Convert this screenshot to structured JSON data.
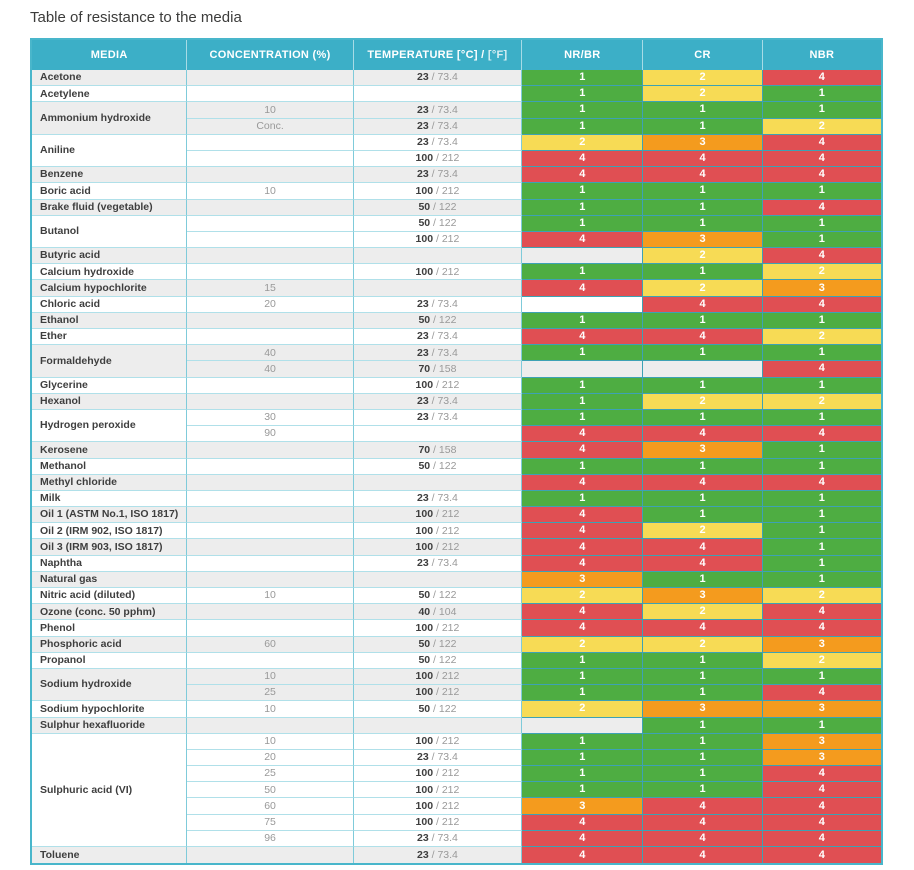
{
  "title": "Table of resistance to the media",
  "header": {
    "media": "MEDIA",
    "concentration": "CONCENTRATION (%)",
    "temperature_main": "TEMPERATURE [°C] /",
    "temperature_sub": "[°F]",
    "nr_br": "NR/BR",
    "cr": "CR",
    "nbr": "NBR"
  },
  "colors": {
    "header_bg": "#3cafc7",
    "outer_border": "#49b6cb",
    "grid_vertical": "#7fcbda",
    "grid_horizontal": "#b0e0e9",
    "grid_rating": "#3da2b4",
    "rating_1_green": "#4ead42",
    "rating_2_yellow": "#f7db55",
    "rating_3_orange": "#f49b1e",
    "rating_4_red": "#e04f53",
    "zebra_grey": "#ededed"
  },
  "chart_data": {
    "type": "table",
    "title": "Table of resistance to the media",
    "columns": [
      "MEDIA",
      "CONCENTRATION (%)",
      "TEMPERATURE [°C] / [°F]",
      "NR/BR",
      "CR",
      "NBR"
    ]
  },
  "groups": [
    {
      "media": "Acetone",
      "rows": [
        {
          "conc": "",
          "temp_c": "23",
          "temp_f": "73.4",
          "nr_br": "1",
          "cr": "2",
          "nbr": "4"
        }
      ]
    },
    {
      "media": "Acetylene",
      "rows": [
        {
          "conc": "",
          "temp_c": "",
          "temp_f": "",
          "nr_br": "1",
          "cr": "2",
          "nbr": "1"
        }
      ]
    },
    {
      "media": "Ammonium hydroxide",
      "rows": [
        {
          "conc": "10",
          "temp_c": "23",
          "temp_f": "73.4",
          "nr_br": "1",
          "cr": "1",
          "nbr": "1"
        },
        {
          "conc": "Conc.",
          "temp_c": "23",
          "temp_f": "73.4",
          "nr_br": "1",
          "cr": "1",
          "nbr": "2"
        }
      ]
    },
    {
      "media": "Aniline",
      "rows": [
        {
          "conc": "",
          "temp_c": "23",
          "temp_f": "73.4",
          "nr_br": "2",
          "cr": "3",
          "nbr": "4"
        },
        {
          "conc": "",
          "temp_c": "100",
          "temp_f": "212",
          "nr_br": "4",
          "cr": "4",
          "nbr": "4"
        }
      ]
    },
    {
      "media": "Benzene",
      "rows": [
        {
          "conc": "",
          "temp_c": "23",
          "temp_f": "73.4",
          "nr_br": "4",
          "cr": "4",
          "nbr": "4"
        }
      ]
    },
    {
      "media": "Boric acid",
      "rows": [
        {
          "conc": "10",
          "temp_c": "100",
          "temp_f": "212",
          "nr_br": "1",
          "cr": "1",
          "nbr": "1"
        }
      ]
    },
    {
      "media": "Brake fluid (vegetable)",
      "rows": [
        {
          "conc": "",
          "temp_c": "50",
          "temp_f": "122",
          "nr_br": "1",
          "cr": "1",
          "nbr": "4"
        }
      ]
    },
    {
      "media": "Butanol",
      "rows": [
        {
          "conc": "",
          "temp_c": "50",
          "temp_f": "122",
          "nr_br": "1",
          "cr": "1",
          "nbr": "1"
        },
        {
          "conc": "",
          "temp_c": "100",
          "temp_f": "212",
          "nr_br": "4",
          "cr": "3",
          "nbr": "1"
        }
      ]
    },
    {
      "media": "Butyric acid",
      "rows": [
        {
          "conc": "",
          "temp_c": "",
          "temp_f": "",
          "nr_br": "",
          "cr": "2",
          "nbr": "4"
        }
      ]
    },
    {
      "media": "Calcium hydroxide",
      "rows": [
        {
          "conc": "",
          "temp_c": "100",
          "temp_f": "212",
          "nr_br": "1",
          "cr": "1",
          "nbr": "2"
        }
      ]
    },
    {
      "media": "Calcium hypochlorite",
      "rows": [
        {
          "conc": "15",
          "temp_c": "",
          "temp_f": "",
          "nr_br": "4",
          "cr": "2",
          "nbr": "3"
        }
      ]
    },
    {
      "media": "Chloric acid",
      "rows": [
        {
          "conc": "20",
          "temp_c": "23",
          "temp_f": "73.4",
          "nr_br": "",
          "cr": "4",
          "nbr": "4"
        }
      ]
    },
    {
      "media": "Ethanol",
      "rows": [
        {
          "conc": "",
          "temp_c": "50",
          "temp_f": "122",
          "nr_br": "1",
          "cr": "1",
          "nbr": "1"
        }
      ]
    },
    {
      "media": "Ether",
      "rows": [
        {
          "conc": "",
          "temp_c": "23",
          "temp_f": "73.4",
          "nr_br": "4",
          "cr": "4",
          "nbr": "2"
        }
      ]
    },
    {
      "media": "Formaldehyde",
      "rows": [
        {
          "conc": "40",
          "temp_c": "23",
          "temp_f": "73.4",
          "nr_br": "1",
          "cr": "1",
          "nbr": "1"
        },
        {
          "conc": "40",
          "temp_c": "70",
          "temp_f": "158",
          "nr_br": "",
          "cr": "",
          "nbr": "4"
        }
      ]
    },
    {
      "media": "Glycerine",
      "rows": [
        {
          "conc": "",
          "temp_c": "100",
          "temp_f": "212",
          "nr_br": "1",
          "cr": "1",
          "nbr": "1"
        }
      ]
    },
    {
      "media": "Hexanol",
      "rows": [
        {
          "conc": "",
          "temp_c": "23",
          "temp_f": "73.4",
          "nr_br": "1",
          "cr": "2",
          "nbr": "2"
        }
      ]
    },
    {
      "media": "Hydrogen peroxide",
      "rows": [
        {
          "conc": "30",
          "temp_c": "23",
          "temp_f": "73.4",
          "nr_br": "1",
          "cr": "1",
          "nbr": "1"
        },
        {
          "conc": "90",
          "temp_c": "",
          "temp_f": "",
          "nr_br": "4",
          "cr": "4",
          "nbr": "4"
        }
      ]
    },
    {
      "media": "Kerosene",
      "rows": [
        {
          "conc": "",
          "temp_c": "70",
          "temp_f": "158",
          "nr_br": "4",
          "cr": "3",
          "nbr": "1"
        }
      ]
    },
    {
      "media": "Methanol",
      "rows": [
        {
          "conc": "",
          "temp_c": "50",
          "temp_f": "122",
          "nr_br": "1",
          "cr": "1",
          "nbr": "1"
        }
      ]
    },
    {
      "media": "Methyl chloride",
      "rows": [
        {
          "conc": "",
          "temp_c": "",
          "temp_f": "",
          "nr_br": "4",
          "cr": "4",
          "nbr": "4"
        }
      ]
    },
    {
      "media": "Milk",
      "rows": [
        {
          "conc": "",
          "temp_c": "23",
          "temp_f": "73.4",
          "nr_br": "1",
          "cr": "1",
          "nbr": "1"
        }
      ]
    },
    {
      "media": "Oil 1 (ASTM No.1, ISO 1817)",
      "rows": [
        {
          "conc": "",
          "temp_c": "100",
          "temp_f": "212",
          "nr_br": "4",
          "cr": "1",
          "nbr": "1"
        }
      ]
    },
    {
      "media": "Oil 2 (IRM 902, ISO 1817)",
      "rows": [
        {
          "conc": "",
          "temp_c": "100",
          "temp_f": "212",
          "nr_br": "4",
          "cr": "2",
          "nbr": "1"
        }
      ]
    },
    {
      "media": "Oil 3 (IRM 903, ISO 1817)",
      "rows": [
        {
          "conc": "",
          "temp_c": "100",
          "temp_f": "212",
          "nr_br": "4",
          "cr": "4",
          "nbr": "1"
        }
      ]
    },
    {
      "media": "Naphtha",
      "rows": [
        {
          "conc": "",
          "temp_c": "23",
          "temp_f": "73.4",
          "nr_br": "4",
          "cr": "4",
          "nbr": "1"
        }
      ]
    },
    {
      "media": "Natural gas",
      "rows": [
        {
          "conc": "",
          "temp_c": "",
          "temp_f": "",
          "nr_br": "3",
          "cr": "1",
          "nbr": "1"
        }
      ]
    },
    {
      "media": "Nitric acid (diluted)",
      "rows": [
        {
          "conc": "10",
          "temp_c": "50",
          "temp_f": "122",
          "nr_br": "2",
          "cr": "3",
          "nbr": "2"
        }
      ]
    },
    {
      "media": "Ozone (conc. 50 pphm)",
      "rows": [
        {
          "conc": "",
          "temp_c": "40",
          "temp_f": "104",
          "nr_br": "4",
          "cr": "2",
          "nbr": "4"
        }
      ]
    },
    {
      "media": "Phenol",
      "rows": [
        {
          "conc": "",
          "temp_c": "100",
          "temp_f": "212",
          "nr_br": "4",
          "cr": "4",
          "nbr": "4"
        }
      ]
    },
    {
      "media": "Phosphoric acid",
      "rows": [
        {
          "conc": "60",
          "temp_c": "50",
          "temp_f": "122",
          "nr_br": "2",
          "cr": "2",
          "nbr": "3"
        }
      ]
    },
    {
      "media": "Propanol",
      "rows": [
        {
          "conc": "",
          "temp_c": "50",
          "temp_f": "122",
          "nr_br": "1",
          "cr": "1",
          "nbr": "2"
        }
      ]
    },
    {
      "media": "Sodium hydroxide",
      "rows": [
        {
          "conc": "10",
          "temp_c": "100",
          "temp_f": "212",
          "nr_br": "1",
          "cr": "1",
          "nbr": "1"
        },
        {
          "conc": "25",
          "temp_c": "100",
          "temp_f": "212",
          "nr_br": "1",
          "cr": "1",
          "nbr": "4"
        }
      ]
    },
    {
      "media": "Sodium hypochlorite",
      "rows": [
        {
          "conc": "10",
          "temp_c": "50",
          "temp_f": "122",
          "nr_br": "2",
          "cr": "3",
          "nbr": "3"
        }
      ]
    },
    {
      "media": "Sulphur hexafluoride",
      "rows": [
        {
          "conc": "",
          "temp_c": "",
          "temp_f": "",
          "nr_br": "",
          "cr": "1",
          "nbr": "1"
        }
      ]
    },
    {
      "media": "Sulphuric acid (VI)",
      "rows": [
        {
          "conc": "10",
          "temp_c": "100",
          "temp_f": "212",
          "nr_br": "1",
          "cr": "1",
          "nbr": "3"
        },
        {
          "conc": "20",
          "temp_c": "23",
          "temp_f": "73.4",
          "nr_br": "1",
          "cr": "1",
          "nbr": "3"
        },
        {
          "conc": "25",
          "temp_c": "100",
          "temp_f": "212",
          "nr_br": "1",
          "cr": "1",
          "nbr": "4"
        },
        {
          "conc": "50",
          "temp_c": "100",
          "temp_f": "212",
          "nr_br": "1",
          "cr": "1",
          "nbr": "4"
        },
        {
          "conc": "60",
          "temp_c": "100",
          "temp_f": "212",
          "nr_br": "3",
          "cr": "4",
          "nbr": "4"
        },
        {
          "conc": "75",
          "temp_c": "100",
          "temp_f": "212",
          "nr_br": "4",
          "cr": "4",
          "nbr": "4"
        },
        {
          "conc": "96",
          "temp_c": "23",
          "temp_f": "73.4",
          "nr_br": "4",
          "cr": "4",
          "nbr": "4"
        }
      ]
    },
    {
      "media": "Toluene",
      "rows": [
        {
          "conc": "",
          "temp_c": "23",
          "temp_f": "73.4",
          "nr_br": "4",
          "cr": "4",
          "nbr": "4"
        }
      ]
    }
  ]
}
